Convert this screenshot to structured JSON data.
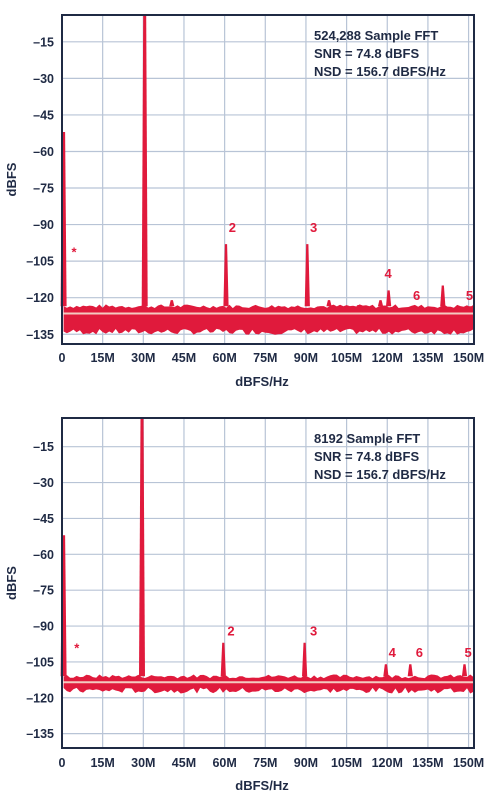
{
  "chart_data": [
    {
      "type": "line",
      "title": "",
      "xlabel": "dBFS/Hz",
      "ylabel": "dBFS",
      "xlim": [
        0,
        152
      ],
      "ylim": [
        -139,
        -4
      ],
      "x_ticks": [
        0,
        15,
        30,
        45,
        60,
        75,
        90,
        105,
        120,
        135,
        150
      ],
      "x_tick_labels": [
        "0",
        "15M",
        "30M",
        "45M",
        "60M",
        "75M",
        "90M",
        "105M",
        "120M",
        "135M",
        "150M"
      ],
      "y_ticks": [
        -15,
        -30,
        -45,
        -60,
        -75,
        -90,
        -105,
        -120,
        -135
      ],
      "y_tick_labels": [
        "–15",
        "–30",
        "–45",
        "–60",
        "–75",
        "–90",
        "–105",
        "–120",
        "–135"
      ],
      "grid": true,
      "annotation_lines": [
        "524,288 Sample FFT",
        "SNR = 74.8 dBFS",
        "NSD = 156.7 dBFS/Hz"
      ],
      "noise_floor": -126.5,
      "noise_band": [
        -123.5,
        -134
      ],
      "series": [
        {
          "x": [
            0.6,
            30.5,
            40.5,
            60.5,
            90.5,
            98.5,
            109.5,
            117.5,
            120.5,
            129.5,
            140.5,
            150.5
          ],
          "values": [
            -52,
            -4,
            -121,
            -98,
            -98,
            -121,
            -123,
            -121,
            -117,
            -124,
            -115,
            -124
          ]
        }
      ],
      "harmonic_labels": [
        {
          "label": "*",
          "x": 3.5,
          "y": -103
        },
        {
          "label": "2",
          "x": 61.5,
          "y": -93
        },
        {
          "label": "3",
          "x": 91.5,
          "y": -93
        },
        {
          "label": "4",
          "x": 119,
          "y": -112
        },
        {
          "label": "6",
          "x": 129.5,
          "y": -121
        },
        {
          "label": "5",
          "x": 149,
          "y": -121
        }
      ]
    },
    {
      "type": "line",
      "title": "",
      "xlabel": "dBFS/Hz",
      "ylabel": "dBFS",
      "xlim": [
        0,
        152
      ],
      "ylim": [
        -141,
        -3
      ],
      "x_ticks": [
        0,
        15,
        30,
        45,
        60,
        75,
        90,
        105,
        120,
        135,
        150
      ],
      "x_tick_labels": [
        "0",
        "15M",
        "30M",
        "45M",
        "60M",
        "75M",
        "90M",
        "105M",
        "120M",
        "135M",
        "150M"
      ],
      "y_ticks": [
        -15,
        -30,
        -45,
        -60,
        -75,
        -90,
        -105,
        -120,
        -135
      ],
      "y_tick_labels": [
        "–15",
        "–30",
        "–45",
        "–60",
        "–75",
        "–90",
        "–105",
        "–120",
        "–135"
      ],
      "grid": true,
      "annotation_lines": [
        "8192 Sample FFT",
        "SNR = 74.8 dBFS",
        "NSD = 156.7 dBFS/Hz"
      ],
      "noise_floor": -113.5,
      "noise_band": [
        -111,
        -117
      ],
      "series": [
        {
          "x": [
            0.6,
            29.5,
            59.5,
            89.5,
            119.5,
            128.5,
            148.5
          ],
          "values": [
            -52,
            -3,
            -97,
            -97,
            -106,
            -106,
            -106
          ]
        }
      ],
      "harmonic_labels": [
        {
          "label": "*",
          "x": 4.5,
          "y": -101
        },
        {
          "label": "2",
          "x": 61,
          "y": -94
        },
        {
          "label": "3",
          "x": 91.5,
          "y": -94
        },
        {
          "label": "4",
          "x": 120.5,
          "y": -103
        },
        {
          "label": "6",
          "x": 130.5,
          "y": -103
        },
        {
          "label": "5",
          "x": 148.5,
          "y": -103
        }
      ]
    }
  ]
}
